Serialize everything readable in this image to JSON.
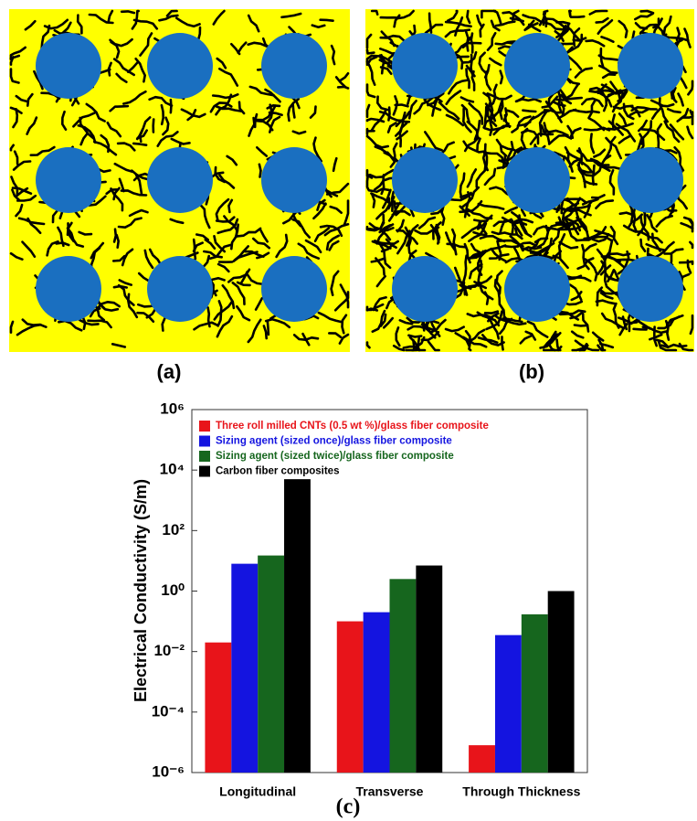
{
  "panel_labels": [
    "(a)",
    "(b)"
  ],
  "chart_data": {
    "type": "bar",
    "caption": "(c)",
    "y_label": "Electrical Conductivity (S/m)",
    "log_y": true,
    "grid": false,
    "legend": "upper left",
    "categories": [
      "Longitudinal",
      "Transverse",
      "Through Thickness"
    ],
    "series": [
      {
        "name": "Three roll milled CNTs (0.5 wt %)/glass fiber composite",
        "color": "#e8141a",
        "values": [
          0.02,
          0.1,
          8e-06
        ]
      },
      {
        "name": "Sizing agent (sized once)/glass fiber composite",
        "color": "#1414e0",
        "values": [
          8,
          0.2,
          0.035
        ]
      },
      {
        "name": "Sizing agent (sized twice)/glass fiber composite",
        "color": "#16661e",
        "values": [
          15,
          2.5,
          0.17
        ]
      },
      {
        "name": "Carbon fiber composites",
        "color": "#000000",
        "values": [
          5000,
          7,
          1
        ]
      }
    ],
    "ylim": [
      1e-06,
      1000000
    ],
    "yticks": [
      {
        "value": 1e-06,
        "label": "10⁻⁶"
      },
      {
        "value": 0.0001,
        "label": "10⁻⁴"
      },
      {
        "value": 0.01,
        "label": "10⁻²"
      },
      {
        "value": 1,
        "label": "10⁰"
      },
      {
        "value": 100,
        "label": "10²"
      },
      {
        "value": 10000,
        "label": "10⁴"
      },
      {
        "value": 1000000,
        "label": "10⁶"
      }
    ]
  }
}
